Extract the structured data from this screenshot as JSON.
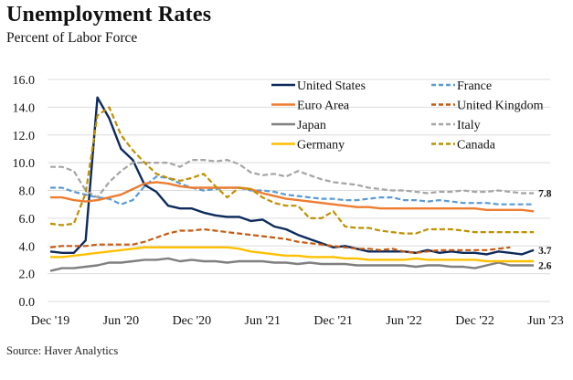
{
  "header": {
    "title": "Unemployment Rates",
    "subtitle": "Percent of Labor Force"
  },
  "footer": {
    "source": "Source: Haver Analytics"
  },
  "chart_data": {
    "type": "line",
    "title": "Unemployment Rates",
    "subtitle": "Percent of Labor Force",
    "xlabel": "",
    "ylabel": "Percent of Labor Force",
    "ylim": [
      0,
      16
    ],
    "yticks": [
      "0.0",
      "2.0",
      "4.0",
      "6.0",
      "8.0",
      "10.0",
      "12.0",
      "14.0",
      "16.0"
    ],
    "ytick_values": [
      0,
      2,
      4,
      6,
      8,
      10,
      12,
      14,
      16
    ],
    "xlim_months": [
      0,
      42
    ],
    "xticks": [
      "Dec '19",
      "Jun '20",
      "Dec '20",
      "Jun '21",
      "Dec '21",
      "Jun '22",
      "Dec '22",
      "Jun '23"
    ],
    "xtick_months": [
      0,
      6,
      12,
      18,
      24,
      30,
      36,
      42
    ],
    "x_start": "Dec 2019",
    "x_frequency": "monthly",
    "grid": true,
    "legend_position": "top-right",
    "end_labels": [
      {
        "series": "Italy",
        "text": "7.8"
      },
      {
        "series": "United States",
        "text": "3.7"
      },
      {
        "series": "Japan",
        "text": "2.6"
      }
    ],
    "series": [
      {
        "name": "United States",
        "color": "#0d2a5c",
        "dash": false,
        "values": [
          3.6,
          3.5,
          3.5,
          4.4,
          14.7,
          13.2,
          11.0,
          10.2,
          8.4,
          7.9,
          6.9,
          6.7,
          6.7,
          6.4,
          6.2,
          6.1,
          6.1,
          5.8,
          5.9,
          5.4,
          5.2,
          4.8,
          4.5,
          4.2,
          3.9,
          4.0,
          3.8,
          3.6,
          3.6,
          3.6,
          3.6,
          3.5,
          3.7,
          3.5,
          3.6,
          3.5,
          3.5,
          3.4,
          3.6,
          3.5,
          3.4,
          3.7
        ]
      },
      {
        "name": "France",
        "color": "#5b9bd5",
        "dash": true,
        "values": [
          8.2,
          8.2,
          7.9,
          7.7,
          7.5,
          7.4,
          7.0,
          7.3,
          8.3,
          9.0,
          8.9,
          8.5,
          8.2,
          8.0,
          8.1,
          8.2,
          8.2,
          8.0,
          8.0,
          7.9,
          7.7,
          7.6,
          7.5,
          7.4,
          7.4,
          7.3,
          7.3,
          7.4,
          7.5,
          7.5,
          7.3,
          7.3,
          7.2,
          7.3,
          7.2,
          7.1,
          7.1,
          7.1,
          7.0,
          7.0,
          7.0,
          7.0
        ]
      },
      {
        "name": "Euro Area",
        "color": "#ed7d31",
        "dash": false,
        "values": [
          7.5,
          7.5,
          7.3,
          7.2,
          7.3,
          7.5,
          7.7,
          8.1,
          8.5,
          8.6,
          8.5,
          8.3,
          8.2,
          8.2,
          8.2,
          8.2,
          8.2,
          8.1,
          7.8,
          7.6,
          7.4,
          7.3,
          7.2,
          7.1,
          7.0,
          6.9,
          6.8,
          6.8,
          6.7,
          6.7,
          6.7,
          6.7,
          6.7,
          6.7,
          6.7,
          6.7,
          6.7,
          6.6,
          6.6,
          6.6,
          6.6,
          6.5
        ]
      },
      {
        "name": "United Kingdom",
        "color": "#c55a11",
        "dash": true,
        "values": [
          3.9,
          4.0,
          4.0,
          4.0,
          4.1,
          4.1,
          4.1,
          4.1,
          4.3,
          4.6,
          4.9,
          5.1,
          5.1,
          5.2,
          5.1,
          5.0,
          4.9,
          4.8,
          4.7,
          4.6,
          4.5,
          4.3,
          4.2,
          4.1,
          4.0,
          3.9,
          3.8,
          3.8,
          3.7,
          3.8,
          3.6,
          3.5,
          3.6,
          3.7,
          3.7,
          3.7,
          3.7,
          3.7,
          3.8,
          3.9,
          null,
          null
        ]
      },
      {
        "name": "Japan",
        "color": "#7f7f7f",
        "dash": false,
        "values": [
          2.2,
          2.4,
          2.4,
          2.5,
          2.6,
          2.8,
          2.8,
          2.9,
          3.0,
          3.0,
          3.1,
          2.9,
          3.0,
          2.9,
          2.9,
          2.8,
          2.9,
          2.9,
          2.9,
          2.8,
          2.8,
          2.7,
          2.8,
          2.7,
          2.7,
          2.7,
          2.6,
          2.6,
          2.6,
          2.6,
          2.6,
          2.5,
          2.6,
          2.6,
          2.5,
          2.5,
          2.4,
          2.6,
          2.8,
          2.6,
          2.6,
          2.6
        ]
      },
      {
        "name": "Italy",
        "color": "#a5a5a5",
        "dash": true,
        "values": [
          9.7,
          9.7,
          9.4,
          8.0,
          7.5,
          8.6,
          9.4,
          10.0,
          10.0,
          10.0,
          10.0,
          9.7,
          10.2,
          10.2,
          10.1,
          10.2,
          9.9,
          9.3,
          9.1,
          9.2,
          9.0,
          9.4,
          9.1,
          8.8,
          8.6,
          8.5,
          8.4,
          8.2,
          8.1,
          8.0,
          8.0,
          7.9,
          7.8,
          7.9,
          7.9,
          8.0,
          7.9,
          7.9,
          8.0,
          7.9,
          7.8,
          7.8
        ]
      },
      {
        "name": "Germany",
        "color": "#ffc000",
        "dash": false,
        "values": [
          3.2,
          3.2,
          3.3,
          3.4,
          3.5,
          3.6,
          3.7,
          3.8,
          3.9,
          3.9,
          3.9,
          3.9,
          3.9,
          3.9,
          3.9,
          3.9,
          3.8,
          3.6,
          3.5,
          3.4,
          3.3,
          3.3,
          3.2,
          3.2,
          3.2,
          3.1,
          3.1,
          3.0,
          3.0,
          3.0,
          3.0,
          3.1,
          3.0,
          3.0,
          3.0,
          3.0,
          3.0,
          2.9,
          2.9,
          2.9,
          2.9,
          2.9
        ]
      },
      {
        "name": "Canada",
        "color": "#bf9000",
        "dash": true,
        "values": [
          5.6,
          5.5,
          5.6,
          7.8,
          13.4,
          14.0,
          12.0,
          10.9,
          10.0,
          9.2,
          8.9,
          8.7,
          8.9,
          9.2,
          8.3,
          7.5,
          8.2,
          8.1,
          7.5,
          7.1,
          6.9,
          6.9,
          6.0,
          6.0,
          6.5,
          5.4,
          5.3,
          5.3,
          5.1,
          5.0,
          4.9,
          4.9,
          5.2,
          5.2,
          5.2,
          5.1,
          5.0,
          5.0,
          5.0,
          5.0,
          5.0,
          5.0
        ]
      }
    ],
    "legend": {
      "left": [
        "United States",
        "Euro Area",
        "Japan",
        "Germany"
      ],
      "right": [
        "France",
        "United Kingdom",
        "Italy",
        "Canada"
      ]
    }
  }
}
